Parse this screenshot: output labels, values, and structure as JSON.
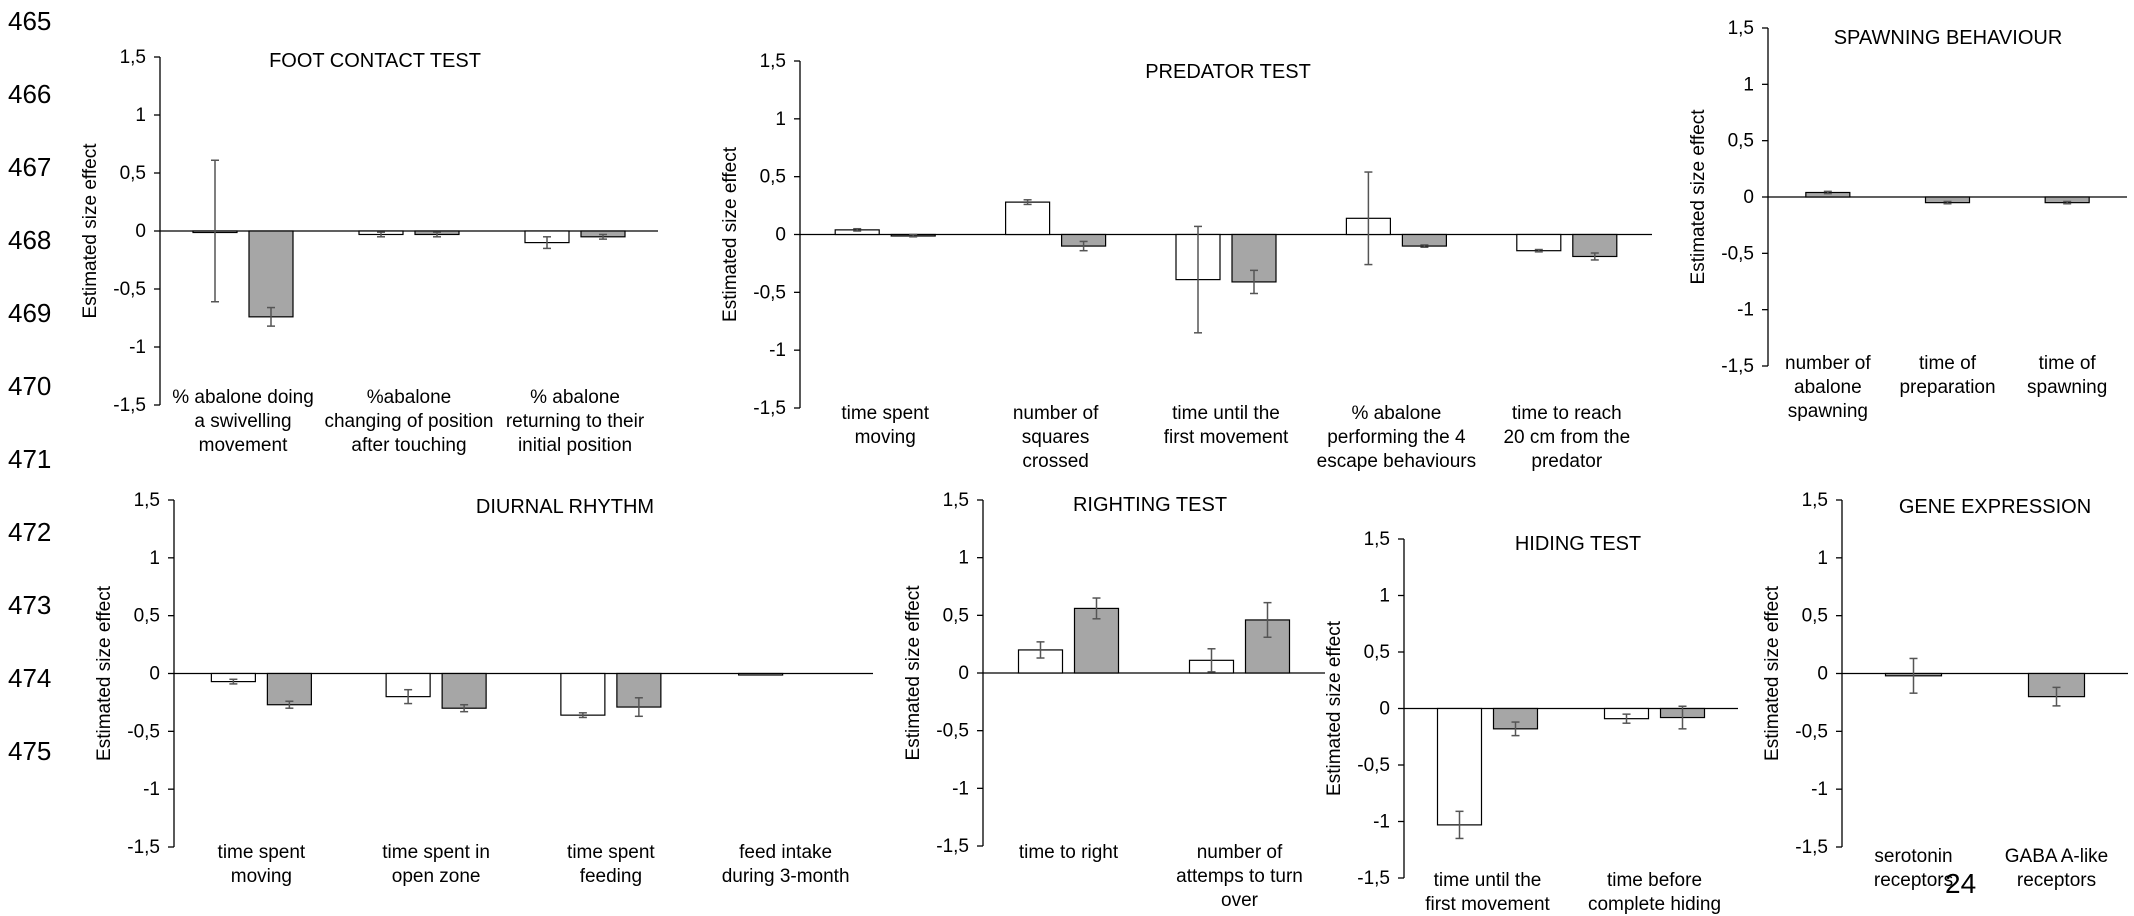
{
  "line_numbers": [
    "465",
    "466",
    "467",
    "468",
    "469",
    "470",
    "471",
    "472",
    "473",
    "474",
    "475"
  ],
  "page_number": "24",
  "colors": {
    "series_light": "#ffffff",
    "series_dark": "#a6a6a6",
    "axis": "#000000",
    "error_bar": "#555555"
  },
  "chart_data": [
    {
      "type": "bar",
      "title": "FOOT CONTACT TEST",
      "ylabel": "Estimated size effect",
      "ylim": [
        -1.5,
        1.5
      ],
      "yticks": [
        "1,5",
        "1",
        "0,5",
        "0",
        "-0,5",
        "-1",
        "-1,5"
      ],
      "categories": [
        [
          "% abalone doing",
          "a swivelling",
          "movement"
        ],
        [
          "%abalone",
          "changing of position",
          "after touching"
        ],
        [
          "% abalone",
          "returning to their",
          "initial position"
        ]
      ],
      "series": [
        {
          "values": [
            0.0,
            -0.03,
            -0.1
          ],
          "errors": [
            0.61,
            0.02,
            0.05
          ]
        },
        {
          "values": [
            -0.74,
            -0.03,
            -0.05
          ],
          "errors": [
            0.08,
            0.02,
            0.02
          ]
        }
      ]
    },
    {
      "type": "bar",
      "title": "PREDATOR TEST",
      "ylabel": "Estimated size effect",
      "ylim": [
        -1.5,
        1.5
      ],
      "yticks": [
        "1,5",
        "1",
        "0,5",
        "0",
        "-0,5",
        "-1",
        "-1,5"
      ],
      "categories": [
        [
          "time spent",
          "moving"
        ],
        [
          "number of",
          "squares",
          "crossed"
        ],
        [
          "time until the",
          "first movement"
        ],
        [
          "%  abalone",
          "performing the 4",
          "escape behaviours"
        ],
        [
          "time to reach",
          "20 cm from the",
          "predator"
        ]
      ],
      "series": [
        {
          "values": [
            0.04,
            0.28,
            -0.39,
            0.14,
            -0.14
          ],
          "errors": [
            0.01,
            0.02,
            0.46,
            0.4,
            0.01
          ]
        },
        {
          "values": [
            -0.01,
            -0.1,
            -0.41,
            -0.1,
            -0.19
          ],
          "errors": [
            0.01,
            0.04,
            0.1,
            0.01,
            0.03
          ]
        }
      ]
    },
    {
      "type": "bar",
      "title": "SPAWNING BEHAVIOUR",
      "ylabel": "Estimated size effect",
      "ylim": [
        -1.5,
        1.5
      ],
      "yticks": [
        "1,5",
        "1",
        "0,5",
        "0",
        "-0,5",
        "-1",
        "-1,5"
      ],
      "categories": [
        [
          "number of",
          "abalone",
          "spawning"
        ],
        [
          "time of",
          "preparation"
        ],
        [
          "time of",
          "spawning"
        ]
      ],
      "series": [
        {
          "values": [
            0.04,
            -0.05,
            -0.05
          ],
          "errors": [
            0.01,
            0.01,
            0.01
          ]
        }
      ]
    },
    {
      "type": "bar",
      "title": "DIURNAL RHYTHM",
      "ylabel": "Estimated size effect",
      "ylim": [
        -1.5,
        1.5
      ],
      "yticks": [
        "1,5",
        "1",
        "0,5",
        "0",
        "-0,5",
        "-1",
        "-1,5"
      ],
      "categories": [
        [
          "time spent",
          "moving"
        ],
        [
          "time spent in",
          "open zone"
        ],
        [
          "time spent",
          "feeding"
        ],
        [
          "feed intake",
          "during 3-month"
        ]
      ],
      "series": [
        {
          "values": [
            -0.07,
            -0.2,
            -0.36,
            -0.01
          ],
          "errors": [
            0.02,
            0.06,
            0.02,
            0.0
          ]
        },
        {
          "values": [
            -0.27,
            -0.3,
            -0.29,
            null
          ],
          "errors": [
            0.03,
            0.03,
            0.08,
            null
          ]
        }
      ]
    },
    {
      "type": "bar",
      "title": "RIGHTING TEST",
      "ylabel": "Estimated size effect",
      "ylim": [
        -1.5,
        1.5
      ],
      "yticks": [
        "1,5",
        "1",
        "0,5",
        "0",
        "-0,5",
        "-1",
        "-1,5"
      ],
      "categories": [
        [
          "time to right"
        ],
        [
          "number of",
          "attemps to turn",
          "over"
        ]
      ],
      "series": [
        {
          "values": [
            0.2,
            0.11
          ],
          "errors": [
            0.07,
            0.1
          ]
        },
        {
          "values": [
            0.56,
            0.46
          ],
          "errors": [
            0.09,
            0.15
          ]
        }
      ]
    },
    {
      "type": "bar",
      "title": "HIDING TEST",
      "ylabel": "Estimated size effect",
      "ylim": [
        -1.5,
        1.5
      ],
      "yticks": [
        "1,5",
        "1",
        "0,5",
        "0",
        "-0,5",
        "-1",
        "-1,5"
      ],
      "categories": [
        [
          "time until the",
          "first movement"
        ],
        [
          "time before",
          "complete hiding"
        ]
      ],
      "series": [
        {
          "values": [
            -1.03,
            -0.09
          ],
          "errors": [
            0.12,
            0.04
          ]
        },
        {
          "values": [
            -0.18,
            -0.08
          ],
          "errors": [
            0.06,
            0.1
          ]
        }
      ]
    },
    {
      "type": "bar",
      "title": "GENE EXPRESSION",
      "ylabel": "Estimated size effect",
      "ylim": [
        -1.5,
        1.5
      ],
      "yticks": [
        "1,5",
        "1",
        "0,5",
        "0",
        "-0,5",
        "-1",
        "-1,5"
      ],
      "categories": [
        [
          "serotonin",
          "receptors"
        ],
        [
          "GABA A-like",
          "receptors"
        ]
      ],
      "series": [
        {
          "values": [
            -0.02,
            -0.2
          ],
          "errors": [
            0.15,
            0.08
          ]
        }
      ]
    }
  ]
}
